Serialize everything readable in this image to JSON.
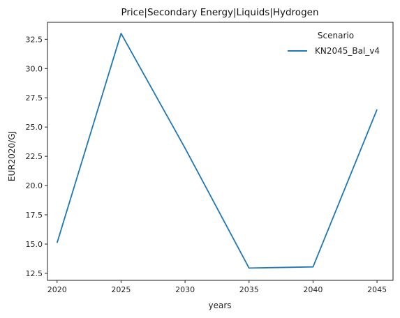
{
  "chart_data": {
    "type": "line",
    "title": "Price|Secondary Energy|Liquids|Hydrogen",
    "xlabel": "years",
    "ylabel": "EUR2020/GJ",
    "x": [
      2020,
      2025,
      2030,
      2035,
      2040,
      2045
    ],
    "xticks": [
      "2020",
      "2025",
      "2030",
      "2035",
      "2040",
      "2045"
    ],
    "yticks": [
      "12.5",
      "15.0",
      "17.5",
      "20.0",
      "22.5",
      "25.0",
      "27.5",
      "30.0",
      "32.5"
    ],
    "ytick_values": [
      12.5,
      15.0,
      17.5,
      20.0,
      22.5,
      25.0,
      27.5,
      30.0,
      32.5
    ],
    "xlim": [
      2019.25,
      2046.25
    ],
    "ylim": [
      11.9,
      33.95
    ],
    "grid": false,
    "legend": {
      "title": "Scenario",
      "placement": "top-right"
    },
    "series": [
      {
        "name": "KN2045_Bal_v4",
        "color": "#1f77b4",
        "values": [
          15.1,
          33.0,
          23.2,
          12.95,
          13.05,
          26.5
        ]
      }
    ]
  }
}
